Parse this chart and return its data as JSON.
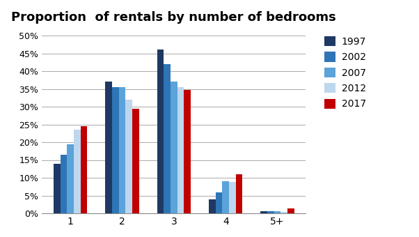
{
  "title": "Proportion  of rentals by number of bedrooms",
  "categories": [
    "1",
    "2",
    "3",
    "4",
    "5+"
  ],
  "series": {
    "1997": [
      0.14,
      0.37,
      0.46,
      0.04,
      0.005
    ],
    "2002": [
      0.165,
      0.355,
      0.42,
      0.058,
      0.006
    ],
    "2007": [
      0.195,
      0.355,
      0.37,
      0.09,
      0.005
    ],
    "2012": [
      0.235,
      0.32,
      0.355,
      0.088,
      0.004
    ],
    "2017": [
      0.245,
      0.295,
      0.347,
      0.11,
      0.013
    ]
  },
  "series_order": [
    "1997",
    "2002",
    "2007",
    "2012",
    "2017"
  ],
  "colors": {
    "1997": "#1F3864",
    "2002": "#2E75B6",
    "2007": "#5BA3D9",
    "2012": "#BDD7EE",
    "2017": "#C00000"
  },
  "ylim": [
    0,
    0.52
  ],
  "yticks": [
    0.0,
    0.05,
    0.1,
    0.15,
    0.2,
    0.25,
    0.3,
    0.35,
    0.4,
    0.45,
    0.5
  ],
  "ytick_labels": [
    "0%",
    "5%",
    "10%",
    "15%",
    "20%",
    "25%",
    "30%",
    "35%",
    "40%",
    "45%",
    "50%"
  ],
  "bar_width": 0.13,
  "grid_color": "#AAAAAA",
  "background_color": "#FFFFFF",
  "title_fontsize": 13
}
